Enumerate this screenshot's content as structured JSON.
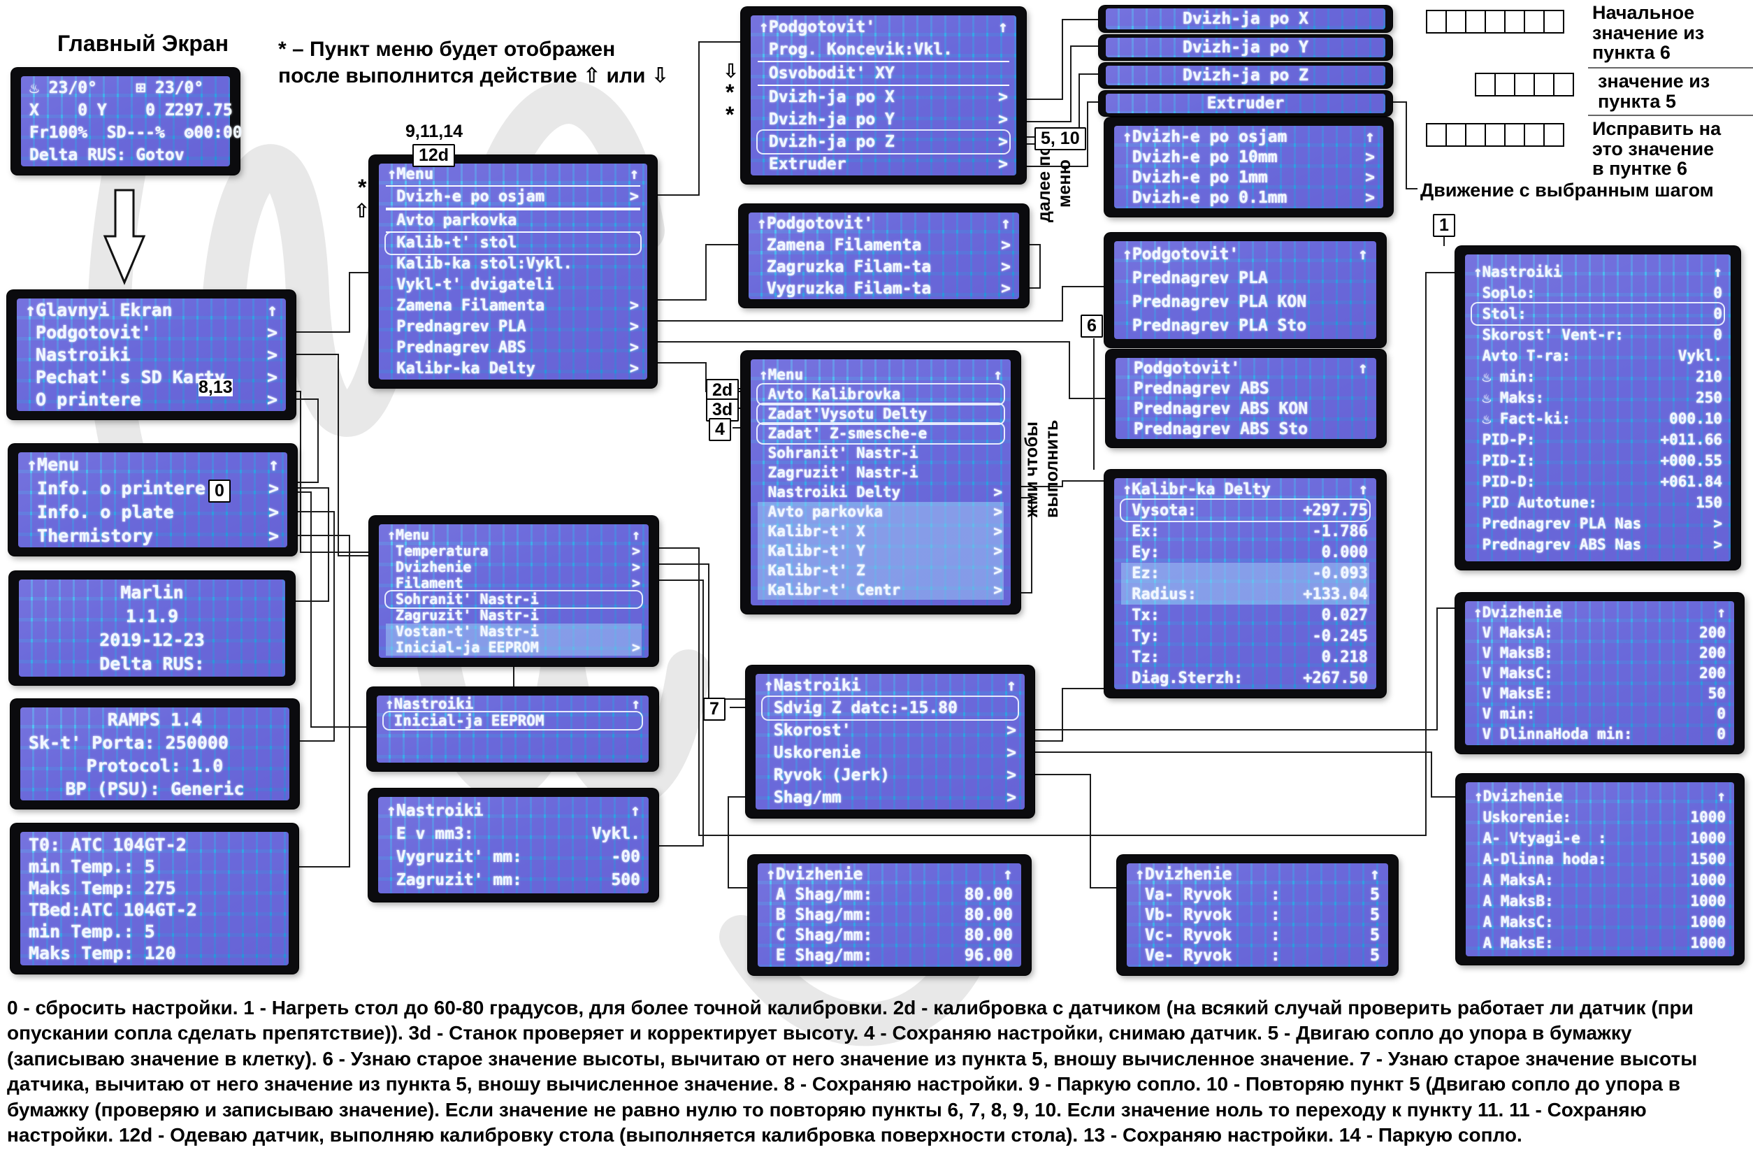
{
  "labels": {
    "main_title": "Главный Экран",
    "note": "* –  Пункт меню будет отображен\nпосле  выполнится действие ⇧ или ⇩",
    "right1": "Начальное\nзначение из\nпункта 6",
    "right2": "значение из\nпункта 5",
    "right3": "Исправить на\nэто значение\nв пунтке 6",
    "right4": "Движение с выбранным шагом",
    "dalee": "далее по\nменю",
    "zhmi": "жми чтобы\nвыполнить",
    "tag_91114": "9,11,14",
    "tag_12d": "12d",
    "tag_813": "8,13",
    "tag_0": "0",
    "tag_510": "5, 10",
    "tag_2d": "2d",
    "tag_3d": "3d",
    "tag_4": "4",
    "tag_6": "6",
    "tag_7": "7",
    "tag_1": "1",
    "marker_star": "*",
    "marker_up": "⇧",
    "marker_down": "⇩"
  },
  "check_rows": [
    7,
    5,
    7
  ],
  "screens": {
    "main_screen": {
      "lines": [
        {
          "l": "♨ 23/0°    ⊞ 23/0°"
        },
        {
          "l": "X    0 Y    0 Z297.75"
        },
        {
          "l": "Fr100%  SD---%  ʘ00:00"
        },
        {
          "l": "Delta RUS: Gotov"
        }
      ]
    },
    "glavnyi_menu": {
      "lines": [
        {
          "l": "↑Glavnyi Ekran",
          "r": "↑"
        },
        {
          "l": " Podgotovit'",
          "r": ">"
        },
        {
          "l": " Nastroiki",
          "r": ">"
        },
        {
          "l": " Pechat' s SD Karty",
          "r": ">"
        },
        {
          "l": " O printere",
          "r": ">"
        }
      ]
    },
    "menu_info": {
      "lines": [
        {
          "l": "↑Menu",
          "r": "↑"
        },
        {
          "l": " Info. o printere",
          "r": ">"
        },
        {
          "l": " Info. o plate",
          "r": ">"
        },
        {
          "l": " Thermistory",
          "r": ">"
        }
      ]
    },
    "marlin": {
      "lines": [
        {
          "l": "Marlin",
          "cls": "c"
        },
        {
          "l": "1.1.9",
          "cls": "c"
        },
        {
          "l": "2019-12-23",
          "cls": "c"
        },
        {
          "l": "Delta RUS:",
          "cls": "c"
        }
      ]
    },
    "ramps": {
      "lines": [
        {
          "l": "RAMPS 1.4",
          "cls": "c"
        },
        {
          "l": "Sk-t' Porta: 250000"
        },
        {
          "l": "Protocol: 1.0",
          "cls": "c"
        },
        {
          "l": "BP (PSU): Generic",
          "cls": "c"
        }
      ]
    },
    "thermistors": {
      "lines": [
        {
          "l": "T0: ATC 104GT-2"
        },
        {
          "l": "min Temp.: 5"
        },
        {
          "l": "Maks Temp: 275"
        },
        {
          "l": "TBed:ATC 104GT-2"
        },
        {
          "l": "min Temp.: 5"
        },
        {
          "l": "Maks Temp: 120"
        }
      ]
    },
    "menu_podgotovit": {
      "lines": [
        {
          "l": "↑Menu",
          "r": "↑"
        },
        {
          "l": " Dvizh-e po osjam",
          "r": ">",
          "cls": "strip"
        },
        {
          "l": " Avto parkovka",
          "cls": "strip"
        },
        {
          "l": " Kalib-t' stol",
          "cls": "boxed"
        },
        {
          "l": " Kalib-ka stol:Vykl."
        },
        {
          "l": " Vykl-t' dvigateli"
        },
        {
          "l": " Zamena Filamenta",
          "r": ">"
        },
        {
          "l": " Prednagrev PLA",
          "r": ">"
        },
        {
          "l": " Prednagrev ABS",
          "r": ">"
        },
        {
          "l": " Kalibr-ka Delty",
          "r": ">"
        }
      ]
    },
    "menu_nastroiki": {
      "lines": [
        {
          "l": "↑Menu",
          "r": "↑"
        },
        {
          "l": " Temperatura",
          "r": ">"
        },
        {
          "l": " Dvizhenie",
          "r": ">"
        },
        {
          "l": " Filament",
          "r": ">"
        },
        {
          "l": " Sohranit' Nastr-i",
          "cls": "boxed"
        },
        {
          "l": " Zagruzit' Nastr-i"
        },
        {
          "l": " Vostan-t' Nastr-i",
          "cls": "hl"
        },
        {
          "l": " Inicial-ja EEPROM",
          "r": ">",
          "cls": "hl"
        }
      ]
    },
    "nastroiki_eeprom": {
      "lines": [
        {
          "l": "↑Nastroiki",
          "r": "↑"
        },
        {
          "l": " Inicial-ja EEPROM",
          "cls": "boxed"
        },
        {
          "l": ""
        },
        {
          "l": ""
        }
      ]
    },
    "nastroiki_filament": {
      "lines": [
        {
          "l": "↑Nastroiki",
          "r": "↑"
        },
        {
          "l": " E v mm3:",
          "r": "Vykl."
        },
        {
          "l": " Vygruzit' mm:",
          "r": "-00"
        },
        {
          "l": " Zagruzit' mm:",
          "r": "500"
        }
      ]
    },
    "podgotovit_dvizh": {
      "lines": [
        {
          "l": "↑Podgotovit'",
          "r": "↑"
        },
        {
          "l": " Prog. Koncevik:Vkl."
        },
        {
          "l": " Osvobodit' XY",
          "cls": "strip"
        },
        {
          "l": " Dvizh-ja po X",
          "r": ">"
        },
        {
          "l": " Dvizh-ja po Y",
          "r": ">"
        },
        {
          "l": " Dvizh-ja po Z",
          "r": ">",
          "cls": "boxed"
        },
        {
          "l": " Extruder",
          "r": ">"
        }
      ]
    },
    "podgotovit_filament": {
      "lines": [
        {
          "l": "↑Podgotovit'",
          "r": "↑"
        },
        {
          "l": " Zamena Filamenta",
          "r": ">"
        },
        {
          "l": " Zagruzka Filam-ta",
          "r": ">"
        },
        {
          "l": " Vygruzka Filam-ta",
          "r": ">"
        }
      ]
    },
    "menu_kalibrovka": {
      "lines": [
        {
          "l": "↑Menu",
          "r": "↑"
        },
        {
          "l": " Avto Kalibrovka",
          "cls": "boxed"
        },
        {
          "l": " Zadat'Vysotu Delty",
          "cls": "boxed"
        },
        {
          "l": " Zadat' Z-smesche-e",
          "cls": "boxed"
        },
        {
          "l": " Sohranit' Nastr-i"
        },
        {
          "l": " Zagruzit' Nastr-i"
        },
        {
          "l": " Nastroiki Delty",
          "r": ">"
        },
        {
          "l": " Avto parkovka",
          "r": ">",
          "cls": "hl"
        },
        {
          "l": " Kalibr-t' X",
          "r": ">",
          "cls": "hl"
        },
        {
          "l": " Kalibr-t' Y",
          "r": ">",
          "cls": "hl"
        },
        {
          "l": " Kalibr-t' Z",
          "r": ">",
          "cls": "hl"
        },
        {
          "l": " Kalibr-t' Centr",
          "r": ">",
          "cls": "hl"
        }
      ]
    },
    "nastroiki_main": {
      "lines": [
        {
          "l": "↑Nastroiki",
          "r": "↑"
        },
        {
          "l": " Sdvig Z datc:-15.80",
          "cls": "boxed"
        },
        {
          "l": " Skorost'",
          "r": ">"
        },
        {
          "l": " Uskorenie",
          "r": ">"
        },
        {
          "l": " Ryvok (Jerk)",
          "r": ">"
        },
        {
          "l": " Shag/mm",
          "r": ">"
        }
      ]
    },
    "dvizhenie_shag": {
      "lines": [
        {
          "l": "↑Dvizhenie",
          "r": "↑"
        },
        {
          "l": " A Shag/mm:",
          "r": "80.00"
        },
        {
          "l": " B Shag/mm:",
          "r": "80.00"
        },
        {
          "l": " C Shag/mm:",
          "r": "80.00"
        },
        {
          "l": " E Shag/mm:",
          "r": "96.00"
        }
      ]
    },
    "mini_x": {
      "lines": [
        {
          "l": "Dvizh-ja po X",
          "cls": "c"
        }
      ]
    },
    "mini_y": {
      "lines": [
        {
          "l": "Dvizh-ja po Y",
          "cls": "c"
        }
      ]
    },
    "mini_z": {
      "lines": [
        {
          "l": "Dvizh-ja po Z",
          "cls": "c"
        }
      ]
    },
    "mini_e": {
      "lines": [
        {
          "l": "Extruder",
          "cls": "c"
        }
      ]
    },
    "dvizh_osjam": {
      "lines": [
        {
          "l": "↑Dvizh-e po osjam",
          "r": "↑"
        },
        {
          "l": " Dvizh-e po 10mm",
          "r": ">"
        },
        {
          "l": " Dvizh-e po 1mm",
          "r": ">"
        },
        {
          "l": " Dvizh-e po 0.1mm",
          "r": ">"
        }
      ]
    },
    "podgotovit_pla": {
      "lines": [
        {
          "l": "↑Podgotovit'",
          "r": "↑"
        },
        {
          "l": " Prednagrev PLA"
        },
        {
          "l": " Prednagrev PLA KON"
        },
        {
          "l": " Prednagrev PLA Sto"
        }
      ]
    },
    "podgotovit_abs": {
      "lines": [
        {
          "l": " Podgotovit'",
          "r": "↑"
        },
        {
          "l": " Prednagrev ABS"
        },
        {
          "l": " Prednagrev ABS KON"
        },
        {
          "l": " Prednagrev ABS Sto"
        }
      ]
    },
    "kalibr_delty": {
      "lines": [
        {
          "l": "↑Kalibr-ka Delty",
          "r": "↑"
        },
        {
          "l": " Vysota:",
          "r": "+297.75",
          "cls": "boxed"
        },
        {
          "l": " Ex:",
          "r": "-1.786"
        },
        {
          "l": " Ey:",
          "r": "0.000"
        },
        {
          "l": " Ez:",
          "r": "-0.093",
          "cls": "hl"
        },
        {
          "l": " Radius:",
          "r": "+133.04",
          "cls": "hl"
        },
        {
          "l": " Tx:",
          "r": "0.027"
        },
        {
          "l": " Ty:",
          "r": "-0.245"
        },
        {
          "l": " Tz:",
          "r": "0.218"
        },
        {
          "l": " Diag.Sterzh:",
          "r": "+267.50"
        }
      ]
    },
    "dvizhenie_ryvok": {
      "lines": [
        {
          "l": "↑Dvizhenie",
          "r": "↑"
        },
        {
          "l": " Va- Ryvok    :",
          "r": "5"
        },
        {
          "l": " Vb- Ryvok    :",
          "r": "5"
        },
        {
          "l": " Vc- Ryvok    :",
          "r": "5"
        },
        {
          "l": " Ve- Ryvok    :",
          "r": "5"
        }
      ]
    },
    "nastroiki_temp": {
      "lines": [
        {
          "l": "↑Nastroiki",
          "r": "↑"
        },
        {
          "l": " Soplo:",
          "r": "0"
        },
        {
          "l": " Stol:",
          "r": "0",
          "cls": "boxed"
        },
        {
          "l": " Skorost' Vent-r:",
          "r": "0"
        },
        {
          "l": " Avto T-ra:",
          "r": "Vykl."
        },
        {
          "l": " ♨ min:",
          "r": "210"
        },
        {
          "l": " ♨ Maks:",
          "r": "250"
        },
        {
          "l": " ♨ Fact-ki:",
          "r": "000.10"
        },
        {
          "l": " PID-P:",
          "r": "+011.66"
        },
        {
          "l": " PID-I:",
          "r": "+000.55"
        },
        {
          "l": " PID-D:",
          "r": "+061.84"
        },
        {
          "l": " PID Autotune:",
          "r": "150"
        },
        {
          "l": " Prednagrev PLA Nas",
          "r": ">"
        },
        {
          "l": " Prednagrev ABS Nas",
          "r": ">"
        }
      ]
    },
    "dvizhenie_vmaks": {
      "lines": [
        {
          "l": "↑Dvizhenie",
          "r": "↑"
        },
        {
          "l": " V MaksA:",
          "r": "200"
        },
        {
          "l": " V MaksB:",
          "r": "200"
        },
        {
          "l": " V MaksC:",
          "r": "200"
        },
        {
          "l": " V MaksE:",
          "r": "50"
        },
        {
          "l": " V min:",
          "r": "0"
        },
        {
          "l": " V DlinnaHoda min:",
          "r": "0"
        }
      ]
    },
    "dvizhenie_uskorenie": {
      "lines": [
        {
          "l": "↑Dvizhenie",
          "r": "↑"
        },
        {
          "l": " Uskorenie:",
          "r": "1000"
        },
        {
          "l": " A- Vtyagi-e  :",
          "r": "1000"
        },
        {
          "l": " A-Dlinna hoda:",
          "r": "1500"
        },
        {
          "l": " A MaksA:",
          "r": "1000"
        },
        {
          "l": " A MaksB:",
          "r": "1000"
        },
        {
          "l": " A MaksC:",
          "r": "1000"
        },
        {
          "l": " A MaksE:",
          "r": "1000"
        }
      ]
    }
  },
  "legend": "0 - сбросить настройки.  1 - Нагреть стол до 60-80 градусов, для более точной калибровки.  2d - калибровка с датчиком (на всякий случай проверить работает ли датчик (при опускании сопла сделать препятствие)).  3d - Станок проверяет и корректирует высоту.  4 - Сохраняю настройки, снимаю датчик.   5 - Двигаю сопло до упора в бумажку (записываю значение в клетку).   6 - Узнаю старое значение высоты, вычитаю от него значение из пункта 5, вношу вычисленное значение.   7 - Узнаю старое значение высоты датчика, вычитаю от него значение из пункта 5, вношу вычисленное значение.  8 - Сохраняю настройки.   9 - Паркую сопло.   10 - Повторяю пункт 5 (Двигаю сопло до упора в бумажку (проверяю и записываю значение). Если значение не равно нулю то повторяю пункты 6, 7, 8, 9, 10.   Если значение ноль то переходу к пункту 11.    11 - Сохраняю настройки. 12d - Одеваю датчик, выполняю калибровку стола (выполняется калибровка поверхности стола). 13 - Сохраняю настройки.  14 - Паркую сопло."
}
